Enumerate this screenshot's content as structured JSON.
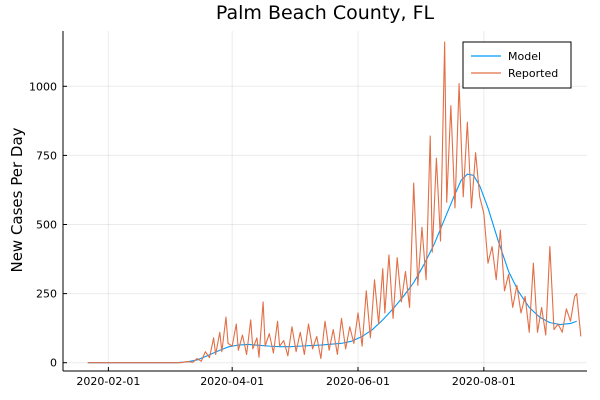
{
  "chart_data": {
    "type": "line",
    "title": "Palm Beach County, FL",
    "xlabel": "",
    "ylabel": "New Cases Per Day",
    "x_range": [
      "2020-01-10",
      "2020-09-20"
    ],
    "ylim": [
      -30,
      1200
    ],
    "x_ticks": [
      "2020-02-01",
      "2020-04-01",
      "2020-06-01",
      "2020-08-01"
    ],
    "y_ticks": [
      0,
      250,
      500,
      750,
      1000
    ],
    "grid": true,
    "legend_position": "top-right",
    "series": [
      {
        "name": "Model",
        "color": "#009AFA",
        "points": [
          [
            "2020-01-22",
            0
          ],
          [
            "2020-02-15",
            0
          ],
          [
            "2020-03-05",
            0
          ],
          [
            "2020-03-10",
            3
          ],
          [
            "2020-03-15",
            10
          ],
          [
            "2020-03-20",
            25
          ],
          [
            "2020-03-25",
            42
          ],
          [
            "2020-03-30",
            57
          ],
          [
            "2020-04-04",
            64
          ],
          [
            "2020-04-09",
            66
          ],
          [
            "2020-04-14",
            63
          ],
          [
            "2020-04-19",
            60
          ],
          [
            "2020-04-24",
            58
          ],
          [
            "2020-04-29",
            58
          ],
          [
            "2020-05-04",
            60
          ],
          [
            "2020-05-09",
            62
          ],
          [
            "2020-05-14",
            64
          ],
          [
            "2020-05-19",
            67
          ],
          [
            "2020-05-24",
            70
          ],
          [
            "2020-05-29",
            78
          ],
          [
            "2020-06-03",
            95
          ],
          [
            "2020-06-08",
            120
          ],
          [
            "2020-06-13",
            155
          ],
          [
            "2020-06-18",
            195
          ],
          [
            "2020-06-23",
            240
          ],
          [
            "2020-06-28",
            290
          ],
          [
            "2020-07-03",
            355
          ],
          [
            "2020-07-08",
            430
          ],
          [
            "2020-07-13",
            520
          ],
          [
            "2020-07-18",
            610
          ],
          [
            "2020-07-21",
            660
          ],
          [
            "2020-07-24",
            682
          ],
          [
            "2020-07-27",
            678
          ],
          [
            "2020-07-30",
            640
          ],
          [
            "2020-08-03",
            560
          ],
          [
            "2020-08-08",
            440
          ],
          [
            "2020-08-13",
            330
          ],
          [
            "2020-08-18",
            255
          ],
          [
            "2020-08-23",
            200
          ],
          [
            "2020-08-28",
            165
          ],
          [
            "2020-09-02",
            145
          ],
          [
            "2020-09-07",
            138
          ],
          [
            "2020-09-12",
            142
          ],
          [
            "2020-09-15",
            150
          ]
        ]
      },
      {
        "name": "Reported",
        "color": "#E26F46",
        "points": [
          [
            "2020-01-22",
            0
          ],
          [
            "2020-02-15",
            0
          ],
          [
            "2020-03-07",
            0
          ],
          [
            "2020-03-10",
            4
          ],
          [
            "2020-03-13",
            2
          ],
          [
            "2020-03-15",
            15
          ],
          [
            "2020-03-17",
            5
          ],
          [
            "2020-03-19",
            40
          ],
          [
            "2020-03-21",
            18
          ],
          [
            "2020-03-23",
            90
          ],
          [
            "2020-03-24",
            30
          ],
          [
            "2020-03-26",
            110
          ],
          [
            "2020-03-27",
            40
          ],
          [
            "2020-03-29",
            165
          ],
          [
            "2020-03-30",
            70
          ],
          [
            "2020-04-01",
            60
          ],
          [
            "2020-04-03",
            140
          ],
          [
            "2020-04-04",
            45
          ],
          [
            "2020-04-06",
            100
          ],
          [
            "2020-04-08",
            30
          ],
          [
            "2020-04-10",
            155
          ],
          [
            "2020-04-11",
            50
          ],
          [
            "2020-04-13",
            90
          ],
          [
            "2020-04-14",
            20
          ],
          [
            "2020-04-16",
            220
          ],
          [
            "2020-04-17",
            60
          ],
          [
            "2020-04-19",
            105
          ],
          [
            "2020-04-21",
            35
          ],
          [
            "2020-04-23",
            150
          ],
          [
            "2020-04-24",
            60
          ],
          [
            "2020-04-26",
            80
          ],
          [
            "2020-04-28",
            25
          ],
          [
            "2020-04-30",
            130
          ],
          [
            "2020-05-02",
            40
          ],
          [
            "2020-05-04",
            110
          ],
          [
            "2020-05-06",
            30
          ],
          [
            "2020-05-08",
            140
          ],
          [
            "2020-05-10",
            50
          ],
          [
            "2020-05-12",
            95
          ],
          [
            "2020-05-14",
            15
          ],
          [
            "2020-05-16",
            150
          ],
          [
            "2020-05-18",
            45
          ],
          [
            "2020-05-20",
            120
          ],
          [
            "2020-05-22",
            30
          ],
          [
            "2020-05-24",
            160
          ],
          [
            "2020-05-26",
            50
          ],
          [
            "2020-05-28",
            130
          ],
          [
            "2020-05-30",
            70
          ],
          [
            "2020-06-01",
            180
          ],
          [
            "2020-06-03",
            60
          ],
          [
            "2020-06-05",
            260
          ],
          [
            "2020-06-07",
            90
          ],
          [
            "2020-06-09",
            300
          ],
          [
            "2020-06-11",
            140
          ],
          [
            "2020-06-13",
            340
          ],
          [
            "2020-06-14",
            180
          ],
          [
            "2020-06-16",
            390
          ],
          [
            "2020-06-18",
            160
          ],
          [
            "2020-06-20",
            380
          ],
          [
            "2020-06-22",
            220
          ],
          [
            "2020-06-24",
            330
          ],
          [
            "2020-06-26",
            200
          ],
          [
            "2020-06-28",
            650
          ],
          [
            "2020-06-30",
            280
          ],
          [
            "2020-07-02",
            490
          ],
          [
            "2020-07-04",
            300
          ],
          [
            "2020-07-06",
            820
          ],
          [
            "2020-07-07",
            400
          ],
          [
            "2020-07-09",
            740
          ],
          [
            "2020-07-11",
            440
          ],
          [
            "2020-07-13",
            1160
          ],
          [
            "2020-07-14",
            580
          ],
          [
            "2020-07-16",
            930
          ],
          [
            "2020-07-18",
            560
          ],
          [
            "2020-07-20",
            1010
          ],
          [
            "2020-07-22",
            600
          ],
          [
            "2020-07-24",
            870
          ],
          [
            "2020-07-26",
            560
          ],
          [
            "2020-07-28",
            760
          ],
          [
            "2020-07-30",
            600
          ],
          [
            "2020-08-01",
            540
          ],
          [
            "2020-08-03",
            360
          ],
          [
            "2020-08-05",
            420
          ],
          [
            "2020-08-07",
            300
          ],
          [
            "2020-08-09",
            480
          ],
          [
            "2020-08-11",
            260
          ],
          [
            "2020-08-13",
            320
          ],
          [
            "2020-08-15",
            200
          ],
          [
            "2020-08-17",
            280
          ],
          [
            "2020-08-19",
            180
          ],
          [
            "2020-08-21",
            240
          ],
          [
            "2020-08-23",
            110
          ],
          [
            "2020-08-25",
            360
          ],
          [
            "2020-08-27",
            110
          ],
          [
            "2020-08-29",
            200
          ],
          [
            "2020-08-31",
            100
          ],
          [
            "2020-09-02",
            420
          ],
          [
            "2020-09-04",
            120
          ],
          [
            "2020-09-06",
            140
          ],
          [
            "2020-09-08",
            110
          ],
          [
            "2020-09-10",
            195
          ],
          [
            "2020-09-12",
            150
          ],
          [
            "2020-09-14",
            240
          ],
          [
            "2020-09-15",
            250
          ],
          [
            "2020-09-17",
            95
          ]
        ]
      }
    ]
  }
}
